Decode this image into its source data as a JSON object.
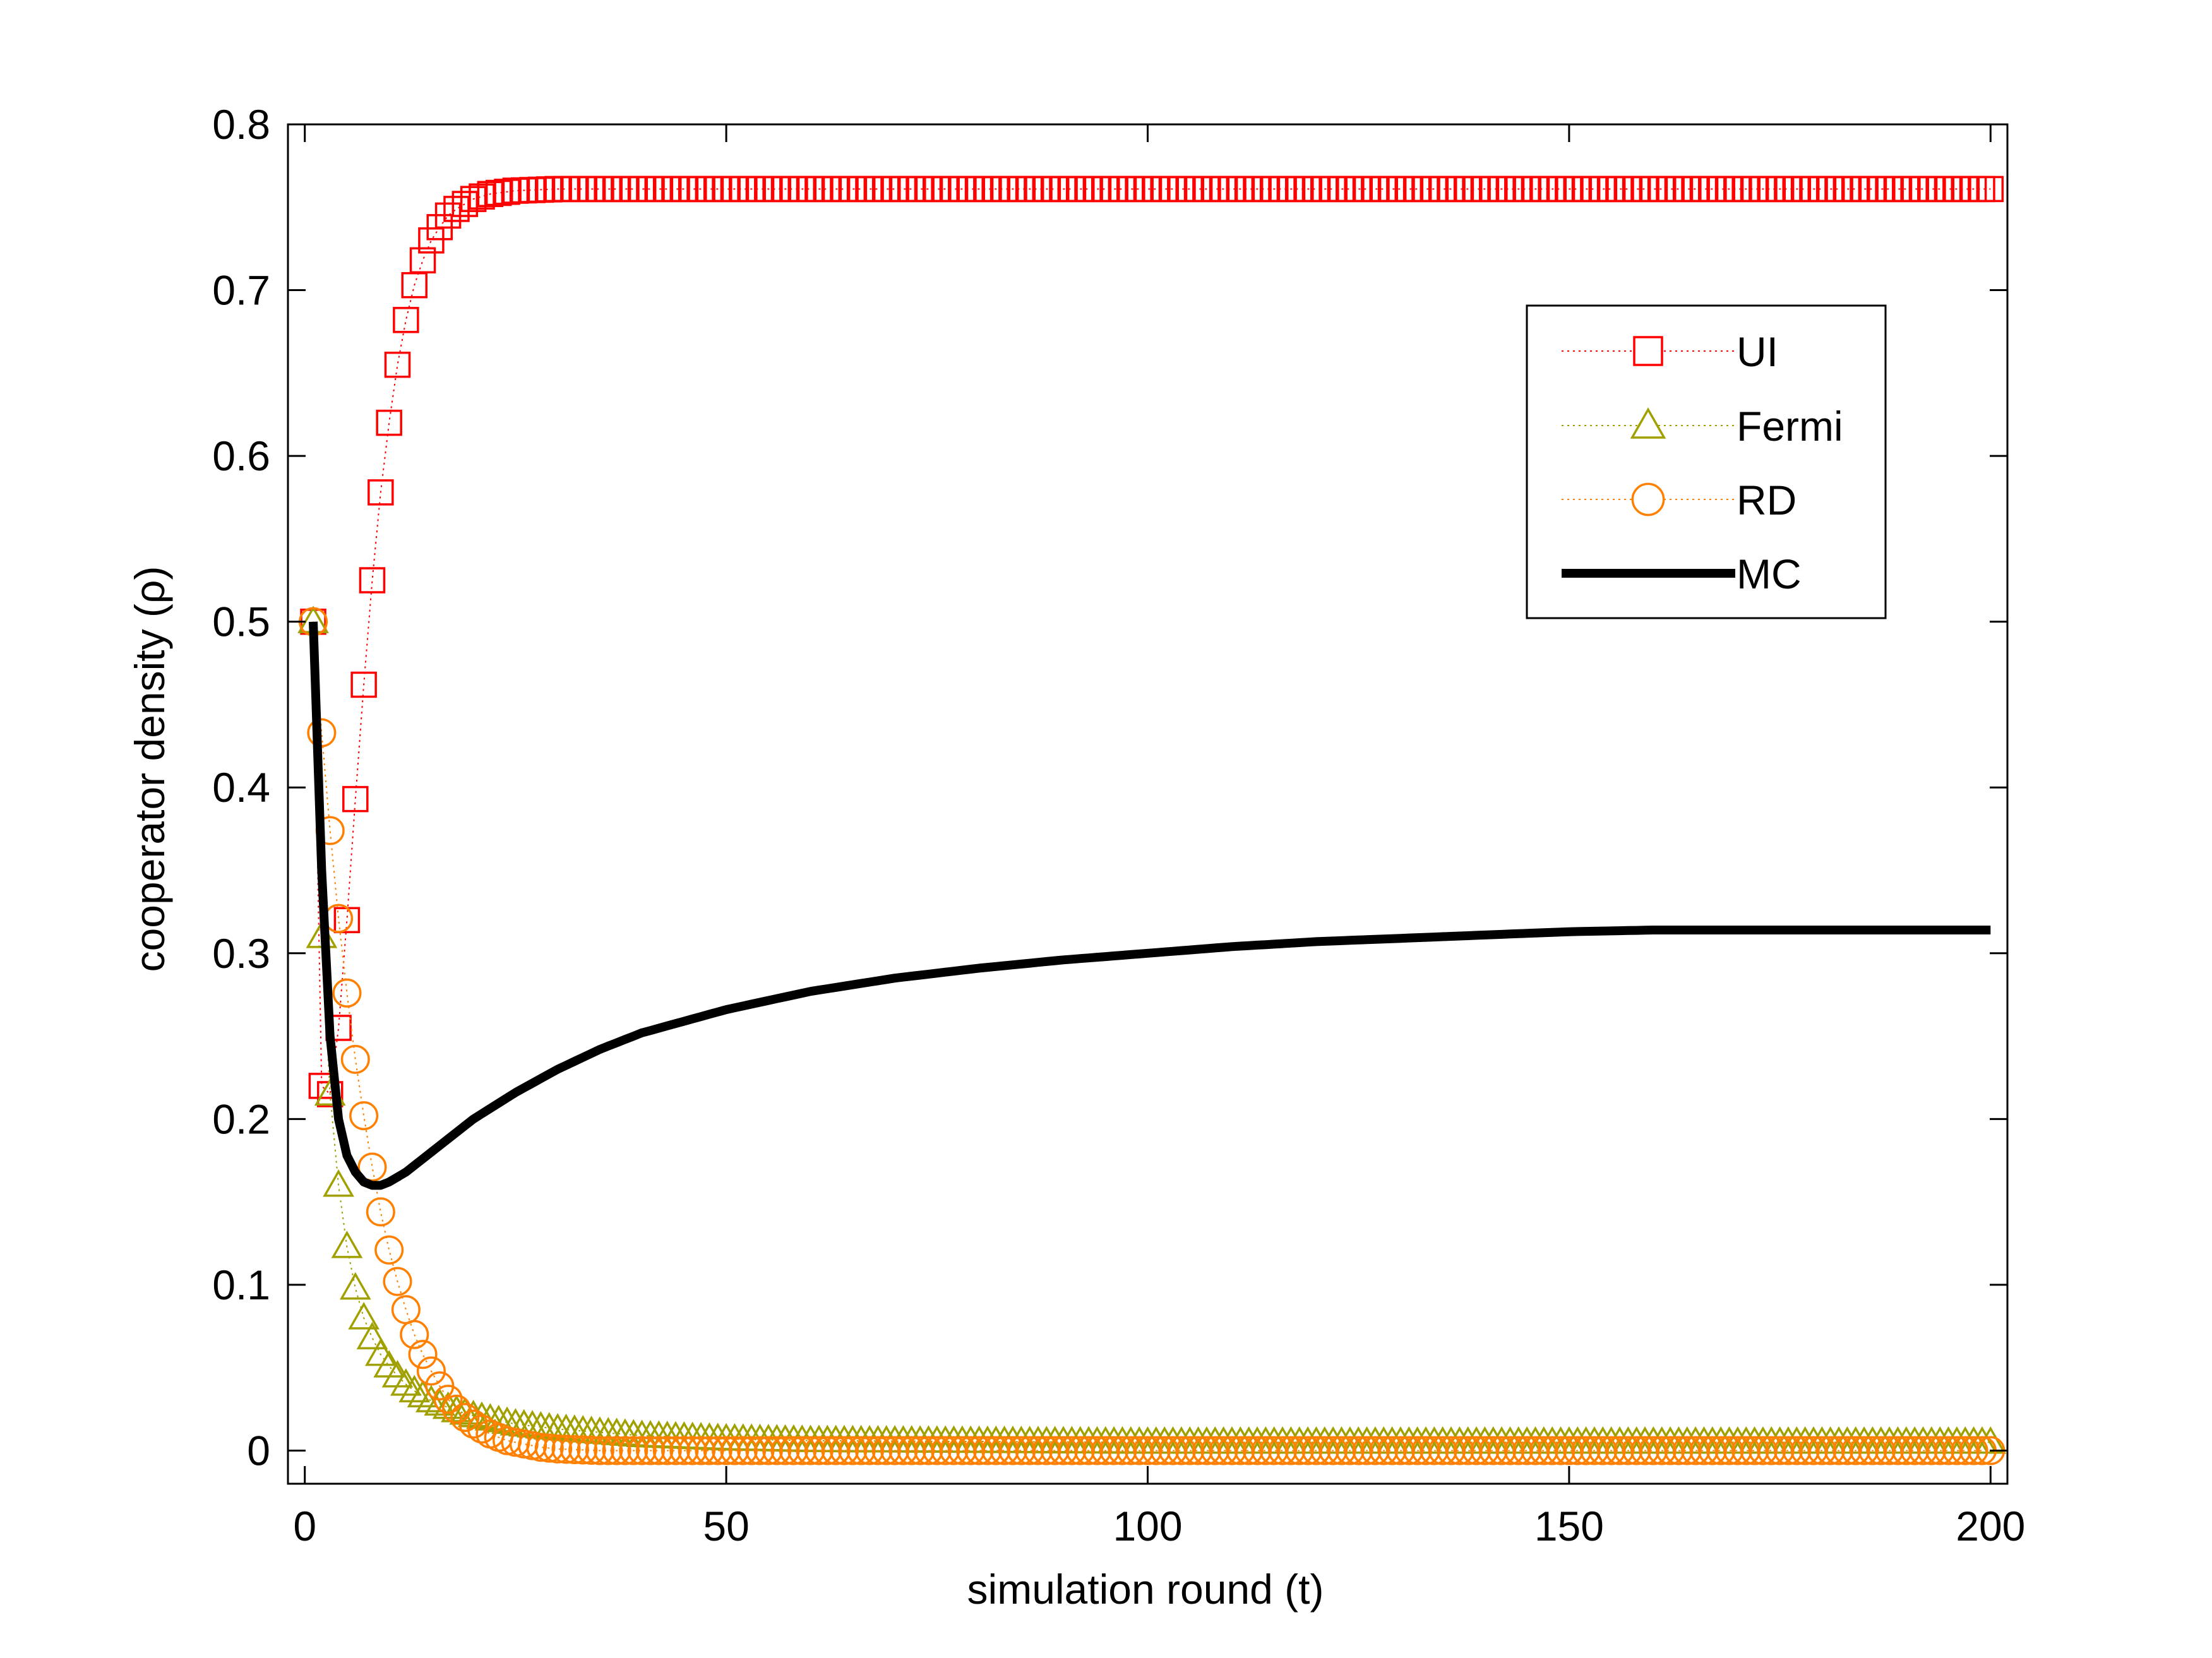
{
  "chart_data": {
    "type": "line",
    "xlabel": "simulation round (t)",
    "ylabel": "cooperator density (ρ)",
    "xlim": [
      -2,
      202
    ],
    "ylim": [
      -0.02,
      0.8
    ],
    "xticks": [
      0,
      50,
      100,
      150,
      200
    ],
    "yticks": [
      0,
      0.1,
      0.2,
      0.3,
      0.4,
      0.5,
      0.6,
      0.7,
      0.8
    ],
    "xtick_labels": [
      "0",
      "50",
      "100",
      "150",
      "200"
    ],
    "ytick_labels": [
      "0",
      "0.1",
      "0.2",
      "0.3",
      "0.4",
      "0.5",
      "0.6",
      "0.7",
      "0.8"
    ],
    "grid": false,
    "legend_position": "upper-right",
    "series": [
      {
        "name": "UI",
        "color": "#ff0000",
        "marker": "square",
        "linestyle": "dotted",
        "x": [
          1,
          2,
          3,
          4,
          5,
          6,
          7,
          8,
          9,
          10,
          11,
          12,
          13,
          14,
          15,
          16,
          17,
          18,
          19,
          20,
          22,
          25,
          30,
          40,
          60,
          100,
          150,
          200
        ],
        "y": [
          0.5,
          0.22,
          0.215,
          0.255,
          0.32,
          0.393,
          0.462,
          0.525,
          0.578,
          0.62,
          0.655,
          0.682,
          0.703,
          0.718,
          0.73,
          0.738,
          0.745,
          0.749,
          0.752,
          0.755,
          0.758,
          0.76,
          0.761,
          0.761,
          0.761,
          0.761,
          0.761,
          0.761
        ]
      },
      {
        "name": "Fermi",
        "color": "#a0a000",
        "marker": "triangle",
        "linestyle": "dotted",
        "x": [
          1,
          2,
          3,
          4,
          5,
          6,
          7,
          8,
          9,
          10,
          11,
          12,
          13,
          14,
          15,
          16,
          18,
          20,
          22,
          25,
          30,
          35,
          40,
          50,
          60,
          100,
          150,
          200
        ],
        "y": [
          0.5,
          0.31,
          0.215,
          0.16,
          0.123,
          0.098,
          0.08,
          0.068,
          0.058,
          0.051,
          0.045,
          0.04,
          0.036,
          0.033,
          0.03,
          0.028,
          0.024,
          0.021,
          0.019,
          0.016,
          0.013,
          0.011,
          0.009,
          0.007,
          0.006,
          0.005,
          0.005,
          0.005
        ]
      },
      {
        "name": "RD",
        "color": "#ff8000",
        "marker": "circle",
        "linestyle": "dotted",
        "x": [
          1,
          2,
          3,
          4,
          5,
          6,
          7,
          8,
          9,
          10,
          11,
          12,
          13,
          14,
          15,
          16,
          17,
          18,
          19,
          20,
          22,
          24,
          26,
          28,
          30,
          35,
          40,
          50,
          100,
          150,
          200
        ],
        "y": [
          0.5,
          0.433,
          0.374,
          0.321,
          0.276,
          0.236,
          0.202,
          0.171,
          0.144,
          0.121,
          0.102,
          0.085,
          0.07,
          0.058,
          0.048,
          0.039,
          0.031,
          0.025,
          0.02,
          0.016,
          0.01,
          0.006,
          0.004,
          0.002,
          0.001,
          0.0,
          0.0,
          0.0,
          0.0,
          0.0,
          0.0
        ]
      },
      {
        "name": "MC",
        "color": "#000000",
        "marker": "none",
        "linestyle": "solid",
        "x": [
          1,
          2,
          3,
          4,
          5,
          6,
          7,
          8,
          9,
          10,
          12,
          15,
          20,
          25,
          30,
          35,
          40,
          50,
          60,
          70,
          80,
          90,
          100,
          110,
          120,
          130,
          140,
          150,
          160,
          170,
          180,
          190,
          200
        ],
        "y": [
          0.5,
          0.35,
          0.25,
          0.2,
          0.178,
          0.168,
          0.162,
          0.16,
          0.16,
          0.162,
          0.168,
          0.18,
          0.2,
          0.216,
          0.23,
          0.242,
          0.252,
          0.266,
          0.277,
          0.285,
          0.291,
          0.296,
          0.3,
          0.304,
          0.307,
          0.309,
          0.311,
          0.313,
          0.314,
          0.314,
          0.314,
          0.314,
          0.314
        ]
      }
    ]
  }
}
